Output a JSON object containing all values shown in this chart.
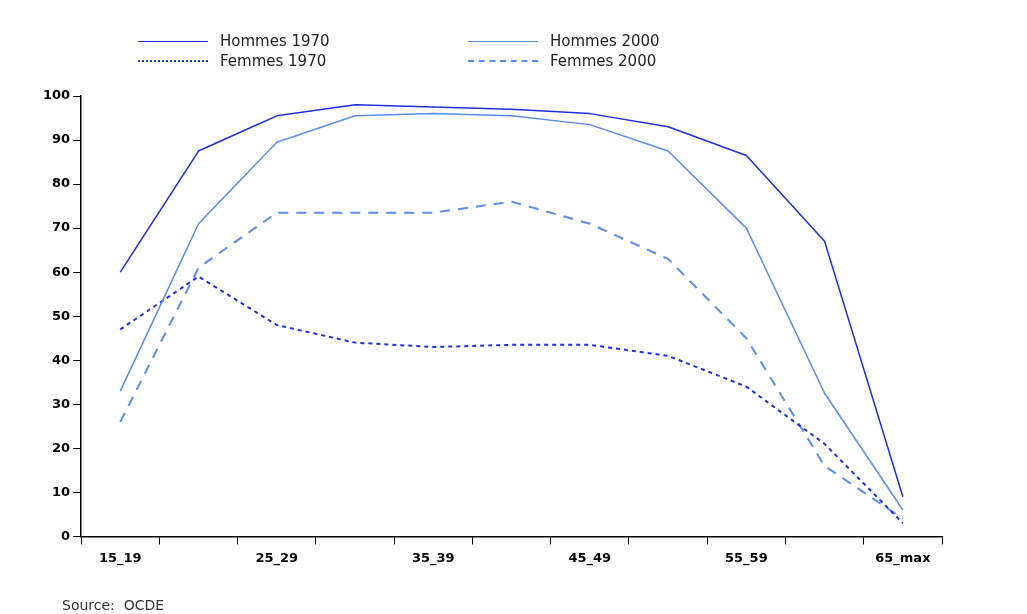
{
  "chart_data": {
    "type": "line",
    "categories": [
      "15_19",
      null,
      "25_29",
      null,
      "35_39",
      null,
      "45_49",
      null,
      "55_59",
      null,
      "65_max"
    ],
    "series": [
      {
        "name": "Hommes 1970",
        "color": "#1f2fe0",
        "line_style": "solid",
        "values": [
          60,
          87.5,
          95.5,
          98,
          97.5,
          97,
          96,
          93,
          86.5,
          67,
          9
        ]
      },
      {
        "name": "Hommes 2000",
        "color": "#5b8cf0",
        "line_style": "solid",
        "values": [
          33,
          71,
          89.5,
          95.5,
          96,
          95.5,
          93.5,
          87.5,
          70,
          32.5,
          6
        ]
      },
      {
        "name": "Femmes 1970",
        "color": "#1f2fe0",
        "line_style": "dotted",
        "values": [
          47,
          59,
          48,
          44,
          43,
          43.5,
          43.5,
          41,
          34,
          21,
          3
        ]
      },
      {
        "name": "Femmes 2000",
        "color": "#5b8cf0",
        "line_style": "dashed",
        "values": [
          26,
          61,
          73.5,
          73.5,
          73.5,
          76,
          71,
          63,
          45,
          16,
          4
        ]
      }
    ],
    "ylim": [
      0,
      100
    ],
    "yticks": [
      0,
      10,
      20,
      30,
      40,
      50,
      60,
      70,
      80,
      90,
      100
    ],
    "grid": false,
    "legend": "top",
    "marker": "none",
    "annotations": [
      "Source:  OCDE"
    ]
  }
}
